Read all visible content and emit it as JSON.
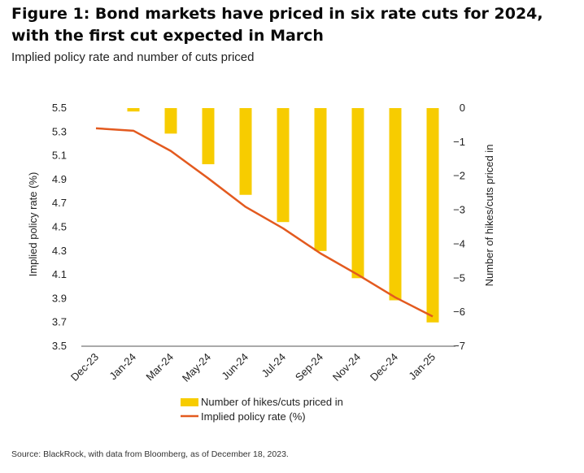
{
  "header": {
    "title": "Figure 1: Bond markets have priced in six rate cuts for 2024, with the first cut expected in March",
    "subtitle": "Implied policy rate and number of cuts priced"
  },
  "footer": {
    "source": "Source: BlackRock, with data from Bloomberg, as of December 18, 2023."
  },
  "colors": {
    "bars": "#f7cc00",
    "line": "#e35a1f",
    "axis": "#555555"
  },
  "chart_data": {
    "type": "bar",
    "categories": [
      "Dec-23",
      "Jan-24",
      "Mar-24",
      "May-24",
      "Jun-24",
      "Jul-24",
      "Sep-24",
      "Nov-24",
      "Dec-24",
      "Jan-25"
    ],
    "y_left": {
      "label": "Implied policy rate (%)",
      "ylim": [
        3.5,
        5.5
      ],
      "ticks": [
        "5.5",
        "5.3",
        "5.1",
        "4.9",
        "4.7",
        "4.5",
        "4.3",
        "4.1",
        "3.9",
        "3.7",
        "3.5"
      ]
    },
    "y_right": {
      "label": "Number of hikes/cuts priced in",
      "ylim": [
        -7,
        0
      ],
      "ticks": [
        "0",
        "−1",
        "−2",
        "−3",
        "−4",
        "−5",
        "−6",
        "−7"
      ]
    },
    "series": [
      {
        "name": "Number of hikes/cuts priced in",
        "type": "bar",
        "axis": "right",
        "values": [
          null,
          -0.1,
          -0.75,
          -1.65,
          -2.55,
          -3.35,
          -4.2,
          -5.0,
          -5.65,
          -6.3
        ]
      },
      {
        "name": "Implied policy rate (%)",
        "type": "line",
        "axis": "left",
        "values": [
          5.33,
          5.31,
          5.14,
          4.91,
          4.67,
          4.49,
          4.28,
          4.1,
          3.91,
          3.75
        ]
      }
    ],
    "grid": false,
    "legend_position": "bottom-center"
  }
}
